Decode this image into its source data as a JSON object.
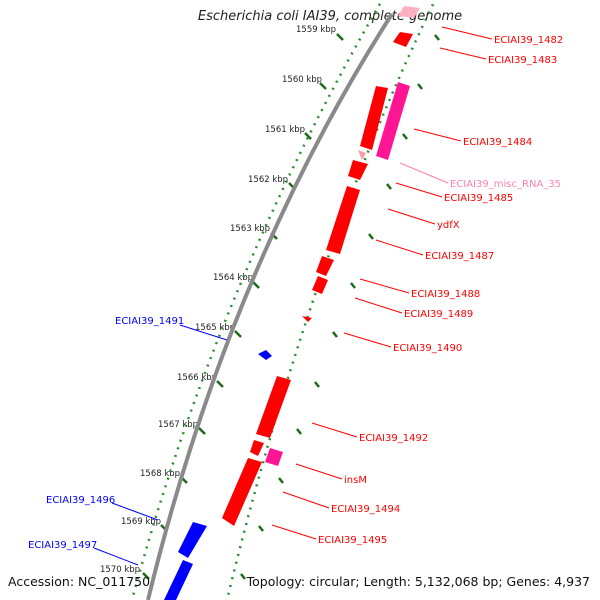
{
  "title": "Escherichia coli IAI39, complete genome",
  "footer": {
    "accession": "Accession: NC_011750",
    "summary": "Topology: circular; Length: 5,132,068 bp; Genes: 4,937"
  },
  "colors": {
    "forward_gene": "#ff0000",
    "reverse_gene": "#0000ff",
    "misc_rna": "#ff1493",
    "misc_rna_label": "#ff80b0",
    "tick_marks": "#2e8b2e",
    "backbone": "#8a8a8a"
  },
  "ticks": [
    {
      "label": "1559 kbp"
    },
    {
      "label": "1560 kbp"
    },
    {
      "label": "1561 kbp"
    },
    {
      "label": "1562 kbp"
    },
    {
      "label": "1563 kbp"
    },
    {
      "label": "1564 kbp"
    },
    {
      "label": "1565 kbp"
    },
    {
      "label": "1566 kbp"
    },
    {
      "label": "1567 kbp"
    },
    {
      "label": "1568 kbp"
    },
    {
      "label": "1569 kbp"
    },
    {
      "label": "1570 kbp"
    }
  ],
  "features": [
    {
      "label": "ECIAI39_1482",
      "strand": "forward",
      "type": "gene"
    },
    {
      "label": "ECIAI39_1483",
      "strand": "forward",
      "type": "gene"
    },
    {
      "label": "ECIAI39_1484",
      "strand": "forward",
      "type": "gene"
    },
    {
      "label": "ECIAI39_misc_RNA_35",
      "strand": "forward",
      "type": "misc_RNA"
    },
    {
      "label": "ECIAI39_1485",
      "strand": "forward",
      "type": "gene"
    },
    {
      "label": "ydfX",
      "strand": "forward",
      "type": "gene"
    },
    {
      "label": "ECIAI39_1487",
      "strand": "forward",
      "type": "gene"
    },
    {
      "label": "ECIAI39_1488",
      "strand": "forward",
      "type": "gene"
    },
    {
      "label": "ECIAI39_1489",
      "strand": "forward",
      "type": "gene"
    },
    {
      "label": "ECIAI39_1490",
      "strand": "forward",
      "type": "gene"
    },
    {
      "label": "ECIAI39_1491",
      "strand": "reverse",
      "type": "gene"
    },
    {
      "label": "ECIAI39_1492",
      "strand": "forward",
      "type": "gene"
    },
    {
      "label": "insM",
      "strand": "forward",
      "type": "misc_RNA"
    },
    {
      "label": "ECIAI39_1494",
      "strand": "forward",
      "type": "gene"
    },
    {
      "label": "ECIAI39_1495",
      "strand": "forward",
      "type": "gene"
    },
    {
      "label": "ECIAI39_1496",
      "strand": "reverse",
      "type": "gene"
    },
    {
      "label": "ECIAI39_1497",
      "strand": "reverse",
      "type": "gene"
    }
  ]
}
